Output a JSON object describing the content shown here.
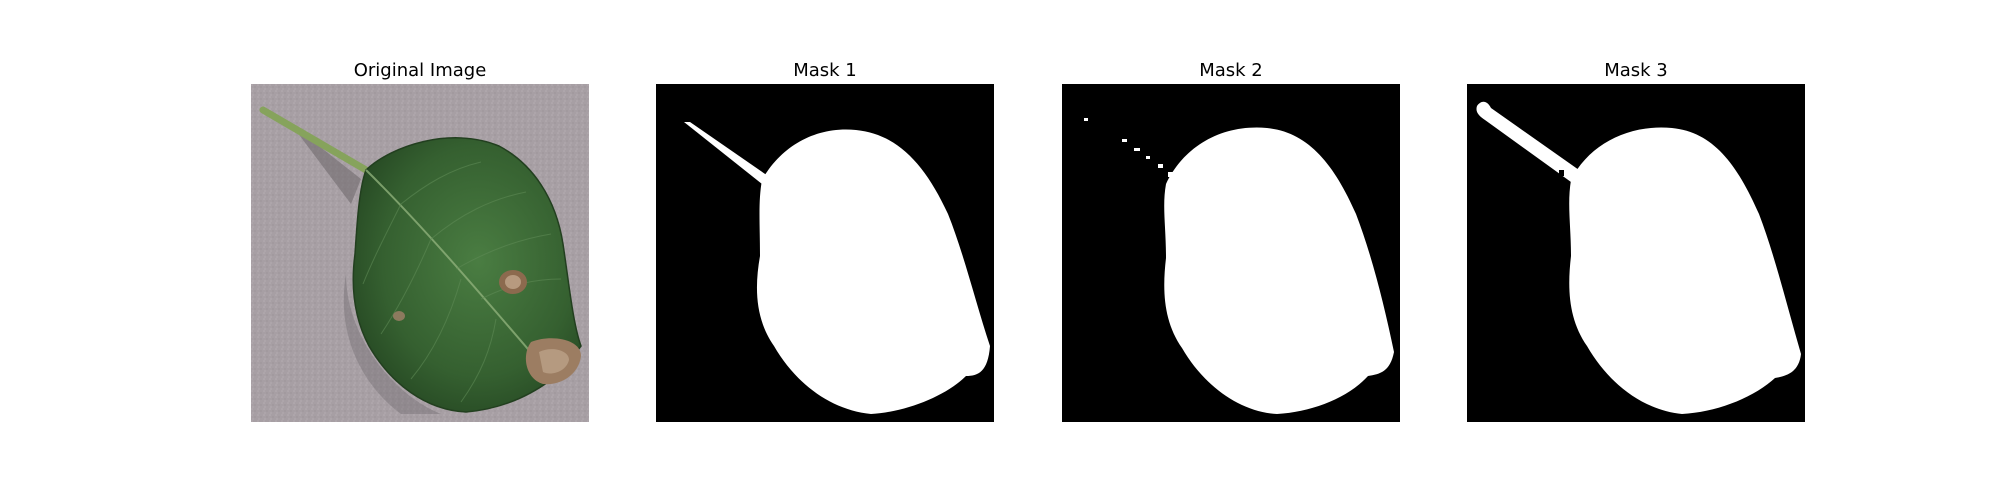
{
  "figure": {
    "panels": [
      {
        "title": "Original Image"
      },
      {
        "title": "Mask 1"
      },
      {
        "title": "Mask 2"
      },
      {
        "title": "Mask 3"
      }
    ]
  },
  "colors": {
    "background": "#ffffff",
    "mask_background": "#000000",
    "mask_foreground": "#ffffff",
    "ground": "#a79fa4",
    "leaf": "#3c6b36",
    "leaf_dark": "#274a24",
    "stem": "#86a35c",
    "lesion": "#9c7d62"
  }
}
